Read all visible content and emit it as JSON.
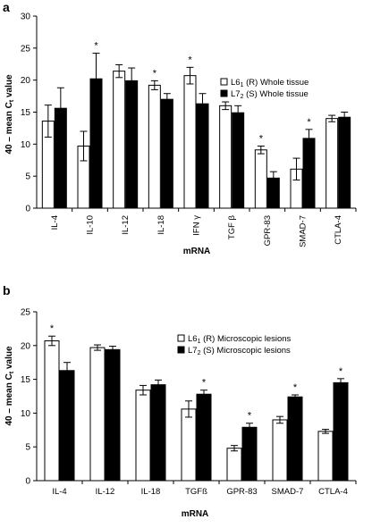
{
  "chart_data": [
    {
      "panel": "a",
      "type": "bar",
      "ylabel": "40 – mean C",
      "ylabel_sub": "t",
      "ylabel_tail": " value",
      "xlabel": "mRNA",
      "ylim": [
        0,
        30
      ],
      "yticks": [
        0,
        5,
        10,
        15,
        20,
        25,
        30
      ],
      "grid": false,
      "legend_position": "right",
      "categories": [
        "IL-4",
        "IL-10",
        "IL-12",
        "IL-18",
        "IFN γ",
        "TGF β",
        "GPR-83",
        "SMAD-7",
        "CTLA-4"
      ],
      "series": [
        {
          "legend_main": "L6",
          "legend_sub": "1",
          "legend_tail": " (R) Whole tissue",
          "color": "#ffffff",
          "values": [
            13.6,
            9.7,
            21.4,
            19.2,
            20.7,
            16.0,
            9.1,
            6.1,
            14.0
          ],
          "errors": [
            2.5,
            2.3,
            1.0,
            0.7,
            1.3,
            0.6,
            0.6,
            1.7,
            0.5
          ]
        },
        {
          "legend_main": "L7",
          "legend_sub": "2",
          "legend_tail": " (S) Whole tissue",
          "color": "#000000",
          "values": [
            15.6,
            20.2,
            19.9,
            17.0,
            16.3,
            14.9,
            4.7,
            10.9,
            14.2
          ],
          "errors": [
            3.2,
            4.0,
            2.0,
            0.9,
            1.6,
            1.1,
            1.0,
            1.4,
            0.8
          ]
        }
      ],
      "significance": [
        "",
        "*",
        "",
        "*",
        "*",
        "",
        "*",
        "*",
        ""
      ]
    },
    {
      "panel": "b",
      "type": "bar",
      "ylabel": "40 – mean C",
      "ylabel_sub": "t",
      "ylabel_tail": " value",
      "xlabel": "mRNA",
      "ylim": [
        0,
        25
      ],
      "yticks": [
        0,
        5,
        10,
        15,
        20,
        25
      ],
      "grid": false,
      "legend_position": "top-right",
      "categories": [
        "IL-4",
        "IL-12",
        "IL-18",
        "TGFß",
        "GPR-83",
        "SMAD-7",
        "CTLA-4"
      ],
      "series": [
        {
          "legend_main": "L6",
          "legend_sub": "1",
          "legend_tail": " (R) Microscopic lesions",
          "color": "#ffffff",
          "values": [
            20.7,
            19.7,
            13.4,
            10.6,
            4.8,
            9.0,
            7.3
          ],
          "errors": [
            0.7,
            0.4,
            0.7,
            1.2,
            0.4,
            0.5,
            0.3
          ]
        },
        {
          "legend_main": "L7",
          "legend_sub": "2",
          "legend_tail": " (S) Microscopic lesions",
          "color": "#000000",
          "values": [
            16.3,
            19.4,
            14.2,
            12.8,
            7.9,
            12.4,
            14.5
          ],
          "errors": [
            1.2,
            0.5,
            0.7,
            0.6,
            0.6,
            0.3,
            0.6
          ]
        }
      ],
      "significance": [
        "*",
        "",
        "",
        "*",
        "*",
        "*",
        "*"
      ]
    }
  ]
}
